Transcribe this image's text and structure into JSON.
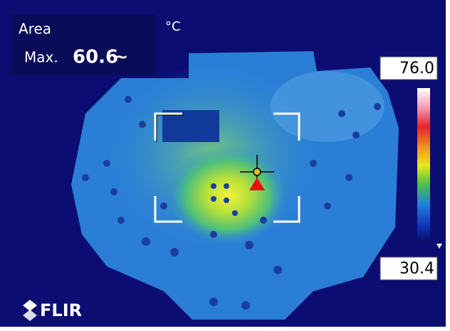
{
  "measurement": {
    "label": "Area",
    "max_label": "Max.",
    "max_value": "60.6",
    "max_suffix": "~"
  },
  "unit": "°C",
  "scale": {
    "max": "76.0",
    "min": "30.4"
  },
  "logo": "FLIR"
}
